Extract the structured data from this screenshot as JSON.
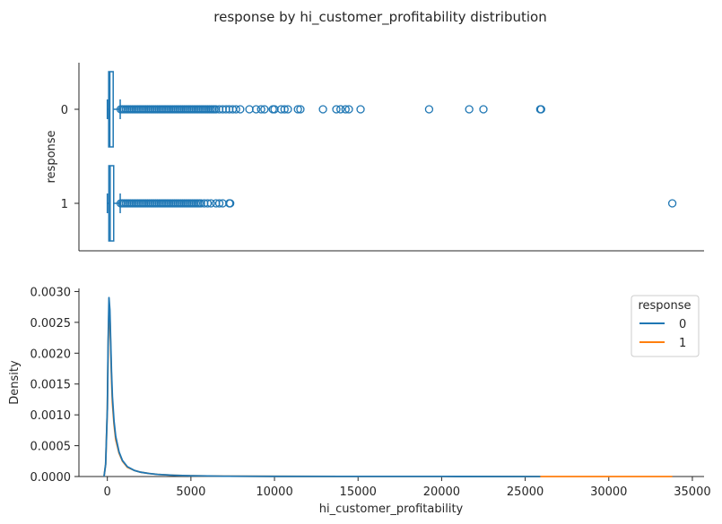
{
  "figure": {
    "title": "response by hi_customer_profitability distribution"
  },
  "chart_data": [
    {
      "type": "box",
      "orientation": "horizontal",
      "ylabel": "response",
      "categories": [
        "0",
        "1"
      ],
      "xlim": [
        -1700,
        35700
      ],
      "box_color": "#1f77b4",
      "boxes": [
        {
          "category": "0",
          "whisker_low": 0,
          "q1": 80,
          "median": 150,
          "q3": 350,
          "whisker_high": 770,
          "outliers": [
            800,
            900,
            1000,
            1100,
            1200,
            1300,
            1400,
            1500,
            1600,
            1700,
            1800,
            1900,
            2000,
            2100,
            2200,
            2300,
            2400,
            2500,
            2600,
            2700,
            2800,
            2900,
            3000,
            3100,
            3200,
            3300,
            3400,
            3500,
            3600,
            3700,
            3800,
            3900,
            4000,
            4100,
            4200,
            4300,
            4400,
            4500,
            4600,
            4700,
            4800,
            4900,
            5000,
            5100,
            5200,
            5300,
            5400,
            5500,
            5600,
            5700,
            5800,
            5900,
            6000,
            6100,
            6200,
            6300,
            6400,
            6500,
            6700,
            6900,
            7100,
            7300,
            7500,
            7700,
            7950,
            8500,
            8900,
            9200,
            9400,
            9900,
            10000,
            10400,
            10600,
            10800,
            11400,
            11550,
            12900,
            13700,
            13950,
            14250,
            14450,
            15150,
            19250,
            21650,
            22500,
            25900,
            25950
          ]
        },
        {
          "category": "1",
          "whisker_low": 0,
          "q1": 90,
          "median": 170,
          "q3": 380,
          "whisker_high": 770,
          "outliers": [
            800,
            900,
            1000,
            1100,
            1200,
            1300,
            1400,
            1500,
            1600,
            1700,
            1800,
            1900,
            2000,
            2100,
            2200,
            2300,
            2400,
            2500,
            2600,
            2700,
            2800,
            2900,
            3000,
            3100,
            3200,
            3300,
            3400,
            3500,
            3600,
            3700,
            3800,
            3900,
            4000,
            4100,
            4200,
            4300,
            4400,
            4500,
            4600,
            4700,
            4800,
            4900,
            5000,
            5100,
            5200,
            5300,
            5400,
            5500,
            5600,
            5800,
            6000,
            6200,
            6500,
            6700,
            6900,
            7300,
            7350,
            33800
          ]
        }
      ]
    },
    {
      "type": "line",
      "subtype": "kde",
      "xlabel": "hi_customer_profitability",
      "ylabel": "Density",
      "xlim": [
        -1700,
        35700
      ],
      "ylim": [
        0,
        0.00305
      ],
      "xticks": [
        0,
        5000,
        10000,
        15000,
        20000,
        25000,
        30000,
        35000
      ],
      "xtick_labels": [
        "0",
        "5000",
        "10000",
        "15000",
        "20000",
        "25000",
        "30000",
        "35000"
      ],
      "yticks": [
        0,
        0.0005,
        0.001,
        0.0015,
        0.002,
        0.0025,
        0.003
      ],
      "ytick_labels": [
        "0.0000",
        "0.0005",
        "0.0010",
        "0.0015",
        "0.0020",
        "0.0025",
        "0.0030"
      ],
      "legend": {
        "title": "response",
        "position": "upper right"
      },
      "series": [
        {
          "name": "0",
          "color": "#1f77b4",
          "x": [
            -200,
            -100,
            0,
            50,
            100,
            150,
            200,
            250,
            300,
            400,
            500,
            700,
            900,
            1200,
            1600,
            2000,
            2500,
            3000,
            4000,
            5000,
            7000,
            10000,
            15000,
            20000,
            25900
          ],
          "y": [
            0,
            0.0002,
            0.0011,
            0.0022,
            0.0029,
            0.0027,
            0.0022,
            0.0017,
            0.0013,
            0.0009,
            0.00065,
            0.0004,
            0.00026,
            0.00016,
            0.0001,
            7e-05,
            5e-05,
            3.5e-05,
            2e-05,
            1.2e-05,
            6e-06,
            3e-06,
            1.5e-06,
            1e-06,
            5e-07
          ]
        },
        {
          "name": "1",
          "color": "#ff7f0e",
          "x": [
            -200,
            -100,
            0,
            50,
            100,
            150,
            200,
            250,
            300,
            400,
            500,
            700,
            900,
            1200,
            1600,
            2000,
            2500,
            3000,
            4000,
            5000,
            7000,
            10000,
            15000,
            20000,
            26000,
            30000,
            33800
          ],
          "y": [
            0,
            0.0002,
            0.0011,
            0.0021,
            0.0027,
            0.0026,
            0.0021,
            0.0016,
            0.0012,
            0.00085,
            0.0006,
            0.00038,
            0.00025,
            0.00015,
            0.0001,
            7e-05,
            5e-05,
            3.5e-05,
            2e-05,
            1.2e-05,
            6e-06,
            3e-06,
            1.5e-06,
            1e-06,
            5e-07,
            3e-07,
            2e-07
          ]
        }
      ]
    }
  ]
}
